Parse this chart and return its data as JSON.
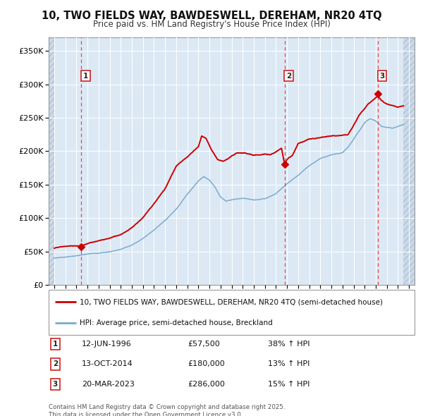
{
  "title": "10, TWO FIELDS WAY, BAWDESWELL, DEREHAM, NR20 4TQ",
  "subtitle": "Price paid vs. HM Land Registry's House Price Index (HPI)",
  "legend_line1": "10, TWO FIELDS WAY, BAWDESWELL, DEREHAM, NR20 4TQ (semi-detached house)",
  "legend_line2": "HPI: Average price, semi-detached house, Breckland",
  "transactions": [
    {
      "num": 1,
      "date": "12-JUN-1996",
      "price": 57500,
      "pct": "38% ↑ HPI",
      "year": 1996.45
    },
    {
      "num": 2,
      "date": "13-OCT-2014",
      "price": 180000,
      "pct": "13% ↑ HPI",
      "year": 2014.78
    },
    {
      "num": 3,
      "date": "20-MAR-2023",
      "price": 286000,
      "pct": "15% ↑ HPI",
      "year": 2023.21
    }
  ],
  "footer": "Contains HM Land Registry data © Crown copyright and database right 2025.\nThis data is licensed under the Open Government Licence v3.0.",
  "red_line_color": "#cc0000",
  "blue_line_color": "#7aabcf",
  "fig_bg_color": "#ffffff",
  "plot_bg_color": "#dce9f5",
  "hatch_bg_color": "#ccd9e8",
  "grid_color": "#ffffff",
  "vline_color": "#ee4444",
  "marker_color": "#cc0000",
  "box_edge_color": "#cc2222",
  "ylim": [
    0,
    370000
  ],
  "xlim_start": 1993.5,
  "xlim_end": 2026.5,
  "data_start": 1994.0,
  "data_end": 2025.5,
  "yticks": [
    0,
    50000,
    100000,
    150000,
    200000,
    250000,
    300000,
    350000
  ],
  "ytick_labels": [
    "£0",
    "£50K",
    "£100K",
    "£150K",
    "£200K",
    "£250K",
    "£300K",
    "£350K"
  ]
}
